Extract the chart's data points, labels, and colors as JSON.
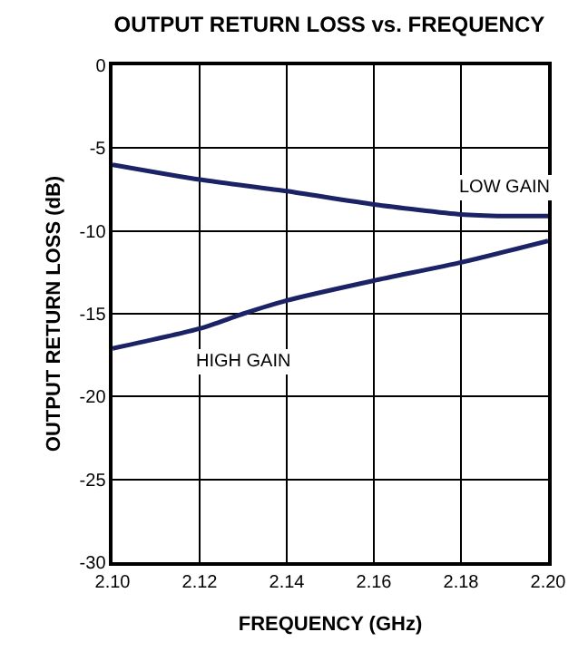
{
  "chart_data": {
    "type": "line",
    "title": "OUTPUT RETURN LOSS vs. FREQUENCY",
    "xlabel": "FREQUENCY (GHz)",
    "ylabel": "OUTPUT RETURN LOSS (dB)",
    "x": [
      2.1,
      2.12,
      2.14,
      2.16,
      2.18,
      2.19,
      2.2
    ],
    "series": [
      {
        "name": "LOW GAIN",
        "color": "#1b2266",
        "values": [
          -6.0,
          -6.9,
          -7.6,
          -8.4,
          -9.0,
          -9.1,
          -9.1
        ]
      },
      {
        "name": "HIGH GAIN",
        "color": "#1b2266",
        "x": [
          2.1,
          2.12,
          2.13,
          2.14,
          2.16,
          2.18,
          2.2
        ],
        "values": [
          -17.1,
          -15.9,
          -15.0,
          -14.2,
          -13.0,
          -11.9,
          -10.6
        ]
      }
    ],
    "xlim": [
      2.1,
      2.2
    ],
    "xticks": [
      {
        "value": 2.1,
        "label": "2.10"
      },
      2.12,
      2.14,
      2.16,
      2.18,
      {
        "value": 2.2,
        "label": "2.20"
      }
    ],
    "ylim": [
      -30,
      0
    ],
    "yticks": [
      -30,
      -25,
      -20,
      -15,
      -10,
      -5,
      0
    ],
    "grid": true,
    "legend": false,
    "marker": "none",
    "line_style": "solid"
  }
}
